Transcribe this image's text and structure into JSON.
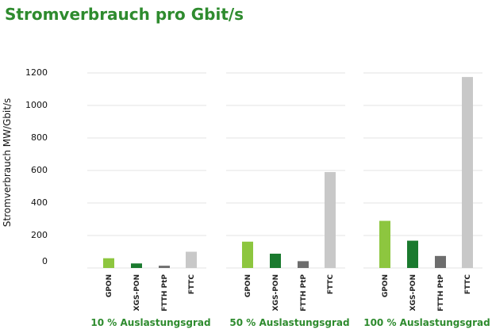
{
  "chart_data": {
    "type": "bar",
    "title": "Stromverbrauch pro Gbit/s",
    "ylabel": "Stromverbrauch MW/Gbit/s",
    "ylim": [
      0,
      1200
    ],
    "yticks": [
      0,
      200,
      400,
      600,
      800,
      1000,
      1200
    ],
    "grid": true,
    "legend": "none",
    "categories": [
      "GPON",
      "XGS-PON",
      "FTTH PtP",
      "FTTC"
    ],
    "colors": [
      "#8dc63f",
      "#1a7a2e",
      "#6d6d6d",
      "#c8c8c8"
    ],
    "groups": [
      {
        "name": "10 % Auslastungsgrad",
        "values": [
          60,
          28,
          14,
          100
        ]
      },
      {
        "name": "50 % Auslastungsgrad",
        "values": [
          162,
          88,
          42,
          590
        ]
      },
      {
        "name": "100 % Auslastungsgrad",
        "values": [
          290,
          168,
          74,
          1175
        ]
      }
    ]
  }
}
